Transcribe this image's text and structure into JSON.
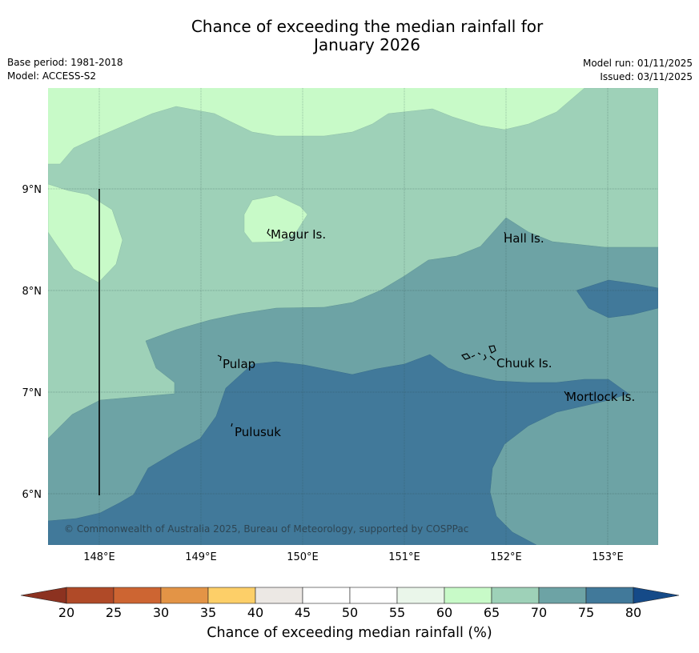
{
  "title": {
    "line1": "Chance of exceeding the median rainfall for",
    "line2": "January 2026"
  },
  "meta": {
    "base_period": "Base period: 1981-2018",
    "model": "Model: ACCESS-S2",
    "model_run": "Model run: 01/11/2025",
    "issued": "Issued: 03/11/2025"
  },
  "map": {
    "lon_ticks": [
      "148°E",
      "149°E",
      "150°E",
      "151°E",
      "152°E",
      "153°E"
    ],
    "lat_ticks": [
      "9°N",
      "8°N",
      "7°N",
      "6°N"
    ],
    "extent": {
      "lon": [
        147.5,
        153.5
      ],
      "lat": [
        5.5,
        10.0
      ]
    },
    "places": [
      {
        "name": "Magur Is.",
        "lon": 149.65,
        "lat": 8.6
      },
      {
        "name": "Hall Is.",
        "lon": 151.95,
        "lat": 8.6
      },
      {
        "name": "Pulap",
        "lon": 149.2,
        "lat": 7.35
      },
      {
        "name": "Chuuk Is.",
        "lon": 151.8,
        "lat": 7.4
      },
      {
        "name": "Mortlock Is.",
        "lon": 152.6,
        "lat": 7.0
      },
      {
        "name": "Pulusuk",
        "lon": 149.3,
        "lat": 6.7
      }
    ],
    "copyright": "© Commonwealth of Australia 2025, Bureau of Meteorology, supported by COSPPac"
  },
  "colorbar": {
    "ticks": [
      "20",
      "25",
      "30",
      "35",
      "40",
      "45",
      "50",
      "55",
      "60",
      "65",
      "70",
      "75",
      "80"
    ],
    "colors": [
      "#b04a28",
      "#cd6532",
      "#e39446",
      "#fdcf68",
      "#ece8e4",
      "#ffffff",
      "#ffffff",
      "#eaf6ea",
      "#c8fac8",
      "#9ed1b8",
      "#6da3a5",
      "#41799a"
    ],
    "under_color": "#8c3220",
    "over_color": "#154a88",
    "label": "Chance of exceeding median rainfall (%)"
  },
  "legend_colors": {
    "c60_65": "#c8fac8",
    "c65_70": "#9ed1b8",
    "c70_75": "#6da3a5",
    "c75_80": "#41799a"
  }
}
